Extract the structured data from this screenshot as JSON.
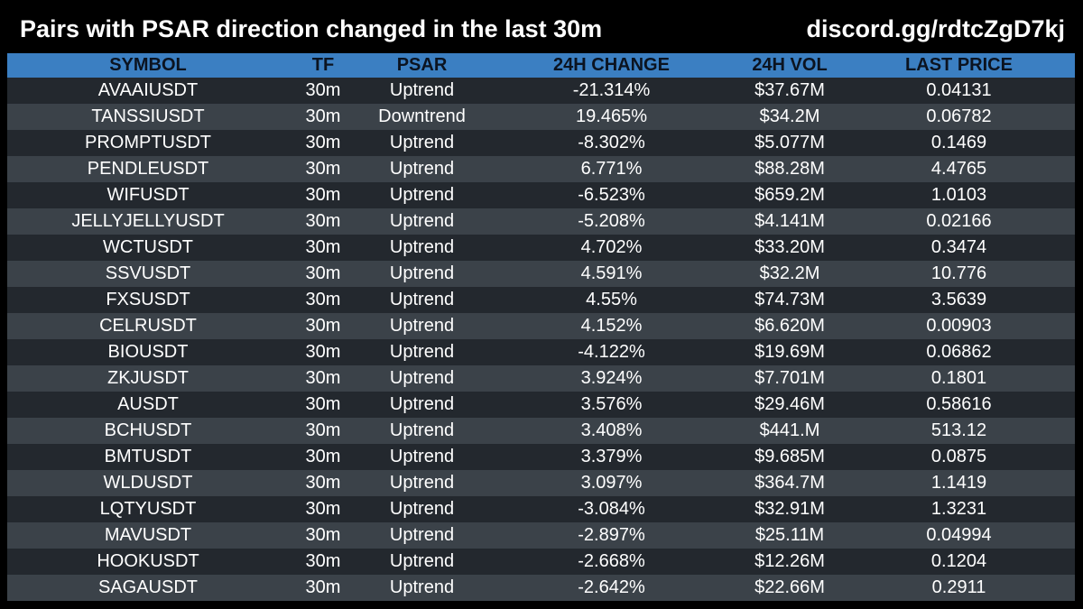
{
  "header": {
    "title": "Pairs with PSAR direction changed in the last 30m",
    "invite": "discord.gg/rdtcZgD7kj"
  },
  "colors": {
    "background": "#000000",
    "header_row": "#3b7fc2",
    "row_dark": "#23282e",
    "row_light": "#3b4249"
  },
  "table": {
    "columns": [
      "SYMBOL",
      "TF",
      "PSAR",
      "24H CHANGE",
      "24H VOL",
      "LAST PRICE"
    ],
    "rows": [
      [
        "AVAAIUSDT",
        "30m",
        "Uptrend",
        "-21.314%",
        "$37.67M",
        "0.04131"
      ],
      [
        "TANSSIUSDT",
        "30m",
        "Downtrend",
        "19.465%",
        "$34.2M",
        "0.06782"
      ],
      [
        "PROMPTUSDT",
        "30m",
        "Uptrend",
        "-8.302%",
        "$5.077M",
        "0.1469"
      ],
      [
        "PENDLEUSDT",
        "30m",
        "Uptrend",
        "6.771%",
        "$88.28M",
        "4.4765"
      ],
      [
        "WIFUSDT",
        "30m",
        "Uptrend",
        "-6.523%",
        "$659.2M",
        "1.0103"
      ],
      [
        "JELLYJELLYUSDT",
        "30m",
        "Uptrend",
        "-5.208%",
        "$4.141M",
        "0.02166"
      ],
      [
        "WCTUSDT",
        "30m",
        "Uptrend",
        "4.702%",
        "$33.20M",
        "0.3474"
      ],
      [
        "SSVUSDT",
        "30m",
        "Uptrend",
        "4.591%",
        "$32.2M",
        "10.776"
      ],
      [
        "FXSUSDT",
        "30m",
        "Uptrend",
        "4.55%",
        "$74.73M",
        "3.5639"
      ],
      [
        "CELRUSDT",
        "30m",
        "Uptrend",
        "4.152%",
        "$6.620M",
        "0.00903"
      ],
      [
        "BIOUSDT",
        "30m",
        "Uptrend",
        "-4.122%",
        "$19.69M",
        "0.06862"
      ],
      [
        "ZKJUSDT",
        "30m",
        "Uptrend",
        "3.924%",
        "$7.701M",
        "0.1801"
      ],
      [
        "AUSDT",
        "30m",
        "Uptrend",
        "3.576%",
        "$29.46M",
        "0.58616"
      ],
      [
        "BCHUSDT",
        "30m",
        "Uptrend",
        "3.408%",
        "$441.M",
        "513.12"
      ],
      [
        "BMTUSDT",
        "30m",
        "Uptrend",
        "3.379%",
        "$9.685M",
        "0.0875"
      ],
      [
        "WLDUSDT",
        "30m",
        "Uptrend",
        "3.097%",
        "$364.7M",
        "1.1419"
      ],
      [
        "LQTYUSDT",
        "30m",
        "Uptrend",
        "-3.084%",
        "$32.91M",
        "1.3231"
      ],
      [
        "MAVUSDT",
        "30m",
        "Uptrend",
        "-2.897%",
        "$25.11M",
        "0.04994"
      ],
      [
        "HOOKUSDT",
        "30m",
        "Uptrend",
        "-2.668%",
        "$12.26M",
        "0.1204"
      ],
      [
        "SAGAUSDT",
        "30m",
        "Uptrend",
        "-2.642%",
        "$22.66M",
        "0.2911"
      ]
    ]
  }
}
